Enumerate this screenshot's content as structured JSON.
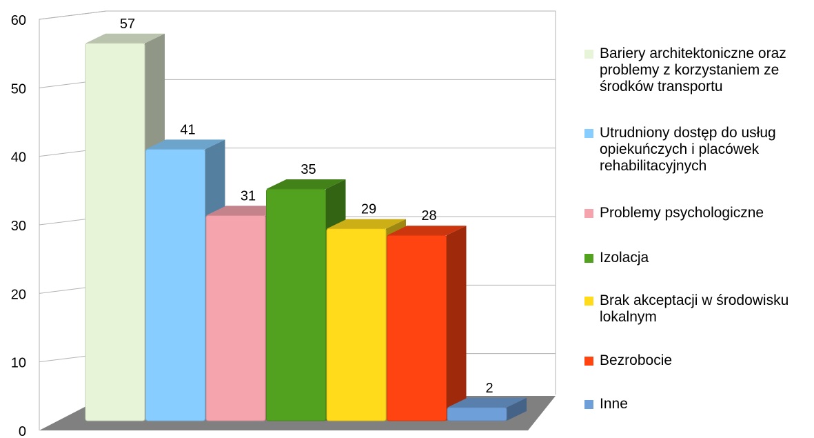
{
  "chart_data": {
    "type": "bar",
    "title": "",
    "xlabel": "",
    "ylabel": "",
    "ylim": [
      0,
      60
    ],
    "yticks": [
      "0",
      "10",
      "20",
      "30",
      "40",
      "50",
      "60"
    ],
    "categories": [
      "Bariery architektoniczne oraz problemy z korzystaniem ze środków transportu",
      "Utrudniony dostęp do usług opiekuńczych i placówek rehabilitacyjnych",
      "Problemy psychologiczne",
      "Izolacja",
      "Brak akceptacji w środowisku lokalnym",
      "Bezrobocie",
      "Inne"
    ],
    "values": [
      57,
      41,
      31,
      35,
      29,
      28,
      2
    ],
    "data_labels": [
      "57",
      "41",
      "31",
      "35",
      "29",
      "28",
      "2"
    ],
    "colors": [
      "#e8f4d8",
      "#87cdff",
      "#f5a3ad",
      "#53a21f",
      "#ffdb1b",
      "#ff4411",
      "#6f9fd8"
    ],
    "style": "3d-bar",
    "grid": true,
    "legend_position": "right"
  }
}
